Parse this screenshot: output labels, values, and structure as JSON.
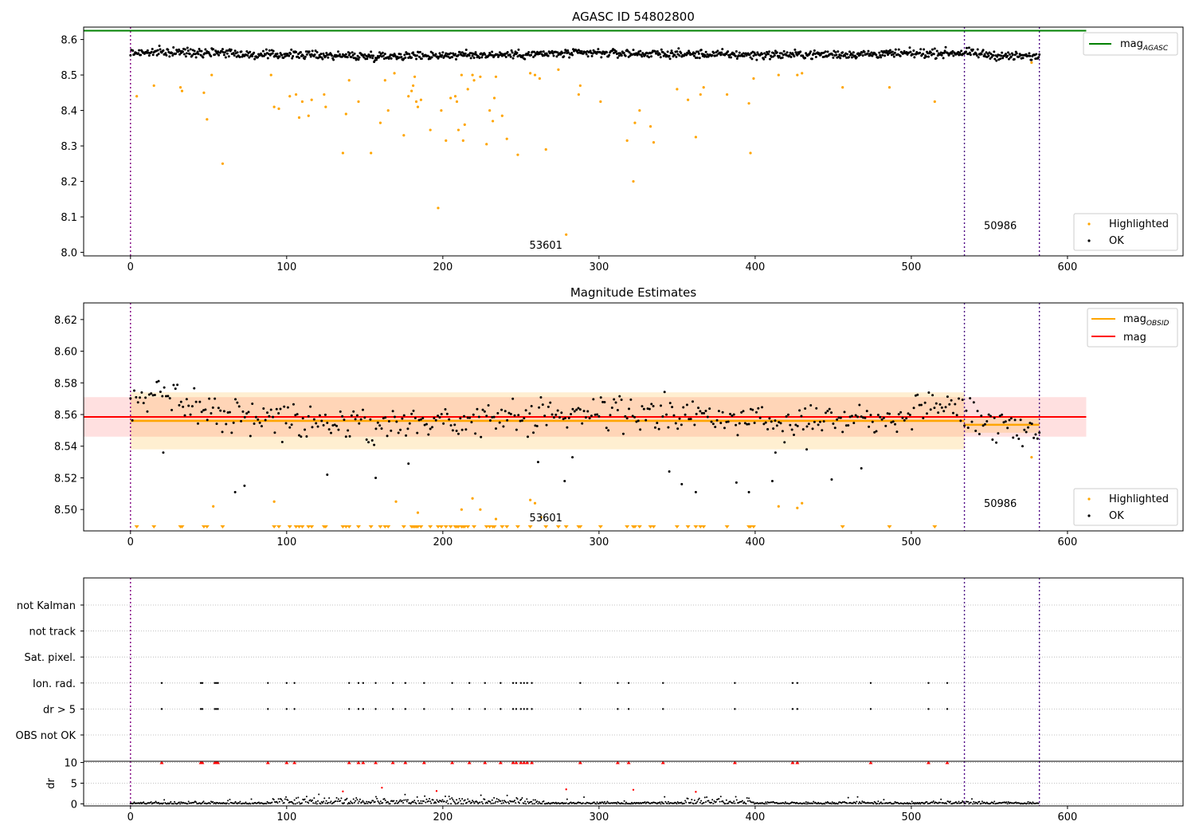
{
  "figure": {
    "xticks": [
      0,
      100,
      200,
      300,
      400,
      500,
      600
    ],
    "obsid_boundaries": [
      0,
      534,
      582
    ]
  },
  "chart_data": [
    {
      "type": "scatter",
      "title": "AGASC ID 54802800",
      "ylim": [
        7.99,
        8.635
      ],
      "xlim": [
        -30,
        674
      ],
      "yticks": [
        "8.0",
        "8.1",
        "8.2",
        "8.3",
        "8.4",
        "8.5",
        "8.6"
      ],
      "legend_top": {
        "position": "top-right",
        "entries": [
          {
            "label": "mag",
            "subscript": "AGASC",
            "color": "#008000"
          }
        ]
      },
      "legend_bottom": {
        "position": "bottom-right",
        "entries": [
          {
            "label": "Highlighted",
            "color": "#ffa500"
          },
          {
            "label": "OK",
            "color": "#000000"
          }
        ]
      },
      "agasc_mag": 8.625,
      "agasc_mag_xrange": [
        -30,
        612
      ],
      "annotations": [
        {
          "text": "53601",
          "x": 266,
          "y": 8.01
        },
        {
          "text": "50986",
          "x": 557,
          "y": 8.065
        }
      ],
      "series": [
        {
          "name": "OK",
          "color": "#000000",
          "x_step": 0.5,
          "points": [
            [
              0,
              8.563
            ],
            [
              60,
              8.565
            ],
            [
              80,
              8.555
            ],
            [
              100,
              8.558
            ],
            [
              150,
              8.553
            ],
            [
              200,
              8.556
            ],
            [
              250,
              8.558
            ],
            [
              300,
              8.562
            ],
            [
              350,
              8.559
            ],
            [
              400,
              8.557
            ],
            [
              450,
              8.558
            ],
            [
              500,
              8.56
            ],
            [
              534,
              8.563
            ],
            [
              560,
              8.553
            ],
            [
              582,
              8.552
            ]
          ]
        },
        {
          "name": "Highlighted",
          "color": "#ffa500",
          "points": [
            [
              4,
              8.44
            ],
            [
              15,
              8.47
            ],
            [
              32,
              8.465
            ],
            [
              33,
              8.455
            ],
            [
              47,
              8.45
            ],
            [
              49,
              8.375
            ],
            [
              52,
              8.5
            ],
            [
              59,
              8.25
            ],
            [
              90,
              8.5
            ],
            [
              92,
              8.41
            ],
            [
              95,
              8.405
            ],
            [
              102,
              8.44
            ],
            [
              106,
              8.445
            ],
            [
              108,
              8.38
            ],
            [
              110,
              8.425
            ],
            [
              114,
              8.385
            ],
            [
              116,
              8.43
            ],
            [
              124,
              8.445
            ],
            [
              125,
              8.41
            ],
            [
              136,
              8.28
            ],
            [
              138,
              8.39
            ],
            [
              140,
              8.485
            ],
            [
              146,
              8.425
            ],
            [
              154,
              8.28
            ],
            [
              160,
              8.365
            ],
            [
              163,
              8.485
            ],
            [
              165,
              8.4
            ],
            [
              169,
              8.505
            ],
            [
              175,
              8.33
            ],
            [
              178,
              8.44
            ],
            [
              180,
              8.455
            ],
            [
              181,
              8.47
            ],
            [
              182,
              8.495
            ],
            [
              183,
              8.425
            ],
            [
              184,
              8.41
            ],
            [
              186,
              8.43
            ],
            [
              192,
              8.345
            ],
            [
              197,
              8.125
            ],
            [
              199,
              8.4
            ],
            [
              202,
              8.315
            ],
            [
              205,
              8.435
            ],
            [
              208,
              8.44
            ],
            [
              209,
              8.425
            ],
            [
              210,
              8.345
            ],
            [
              212,
              8.5
            ],
            [
              213,
              8.315
            ],
            [
              214,
              8.36
            ],
            [
              216,
              8.46
            ],
            [
              219,
              8.5
            ],
            [
              220,
              8.485
            ],
            [
              224,
              8.495
            ],
            [
              228,
              8.305
            ],
            [
              230,
              8.4
            ],
            [
              232,
              8.37
            ],
            [
              233,
              8.435
            ],
            [
              234,
              8.495
            ],
            [
              238,
              8.385
            ],
            [
              241,
              8.32
            ],
            [
              248,
              8.275
            ],
            [
              256,
              8.505
            ],
            [
              259,
              8.5
            ],
            [
              262,
              8.49
            ],
            [
              266,
              8.29
            ],
            [
              274,
              8.515
            ],
            [
              279,
              8.05
            ],
            [
              287,
              8.445
            ],
            [
              288,
              8.47
            ],
            [
              301,
              8.425
            ],
            [
              318,
              8.315
            ],
            [
              322,
              8.2
            ],
            [
              323,
              8.365
            ],
            [
              326,
              8.4
            ],
            [
              333,
              8.355
            ],
            [
              335,
              8.31
            ],
            [
              350,
              8.46
            ],
            [
              357,
              8.43
            ],
            [
              362,
              8.325
            ],
            [
              365,
              8.445
            ],
            [
              367,
              8.465
            ],
            [
              382,
              8.445
            ],
            [
              396,
              8.42
            ],
            [
              397,
              8.28
            ],
            [
              399,
              8.49
            ],
            [
              415,
              8.5
            ],
            [
              427,
              8.5
            ],
            [
              430,
              8.505
            ],
            [
              456,
              8.465
            ],
            [
              486,
              8.465
            ],
            [
              515,
              8.425
            ],
            [
              577,
              8.535
            ]
          ]
        }
      ]
    },
    {
      "type": "scatter",
      "title": "Magnitude Estimates",
      "ylim": [
        8.4865,
        8.6305
      ],
      "xlim": [
        -30,
        674
      ],
      "yticks": [
        "8.50",
        "8.52",
        "8.54",
        "8.56",
        "8.58",
        "8.60",
        "8.62"
      ],
      "legend_top": {
        "position": "top-right",
        "entries": [
          {
            "label": "mag",
            "subscript": "OBSID",
            "color": "#ffa500"
          },
          {
            "label": "mag",
            "subscript": "",
            "color": "#ff0000"
          }
        ]
      },
      "legend_bottom": {
        "position": "bottom-right",
        "entries": [
          {
            "label": "Highlighted",
            "color": "#ffa500"
          },
          {
            "label": "OK",
            "color": "#000000"
          }
        ]
      },
      "mag": 8.5585,
      "mag_band": [
        8.546,
        8.571
      ],
      "mag_xrange": [
        -30,
        612
      ],
      "obsid_mag": [
        {
          "x0": 0,
          "x1": 534,
          "mag": 8.556,
          "band": [
            8.538,
            8.574
          ]
        },
        {
          "x0": 534,
          "x1": 582,
          "mag": 8.5535,
          "band": [
            8.5485,
            8.5585
          ]
        }
      ],
      "annotations": [
        {
          "text": "53601",
          "x": 266,
          "y": 8.4925
        },
        {
          "text": "50986",
          "x": 557,
          "y": 8.5015
        }
      ],
      "series": [
        {
          "name": "OK",
          "color": "#000000",
          "x_step": 1.2,
          "points": [
            [
              0,
              8.563
            ],
            [
              20,
              8.575
            ],
            [
              40,
              8.568
            ],
            [
              60,
              8.56
            ],
            [
              100,
              8.557
            ],
            [
              150,
              8.553
            ],
            [
              200,
              8.556
            ],
            [
              250,
              8.558
            ],
            [
              300,
              8.562
            ],
            [
              350,
              8.559
            ],
            [
              400,
              8.557
            ],
            [
              450,
              8.558
            ],
            [
              500,
              8.56
            ],
            [
              515,
              8.57
            ],
            [
              534,
              8.56
            ],
            [
              560,
              8.553
            ],
            [
              582,
              8.55
            ]
          ],
          "outliers": [
            [
              21,
              8.536
            ],
            [
              67,
              8.511
            ],
            [
              73,
              8.515
            ],
            [
              126,
              8.522
            ],
            [
              157,
              8.52
            ],
            [
              178,
              8.529
            ],
            [
              261,
              8.53
            ],
            [
              278,
              8.518
            ],
            [
              283,
              8.533
            ],
            [
              345,
              8.524
            ],
            [
              353,
              8.516
            ],
            [
              362,
              8.511
            ],
            [
              388,
              8.517
            ],
            [
              396,
              8.511
            ],
            [
              411,
              8.518
            ],
            [
              449,
              8.519
            ],
            [
              468,
              8.526
            ],
            [
              413,
              8.536
            ],
            [
              433,
              8.538
            ]
          ]
        },
        {
          "name": "Highlighted",
          "color": "#ffa500",
          "points": [
            [
              53,
              8.502
            ],
            [
              92,
              8.505
            ],
            [
              170,
              8.505
            ],
            [
              184,
              8.498
            ],
            [
              212,
              8.5
            ],
            [
              219,
              8.507
            ],
            [
              224,
              8.5
            ],
            [
              234,
              8.494
            ],
            [
              256,
              8.506
            ],
            [
              259,
              8.504
            ],
            [
              263,
              8.495
            ],
            [
              415,
              8.502
            ],
            [
              427,
              8.501
            ],
            [
              430,
              8.504
            ],
            [
              577,
              8.533
            ]
          ]
        }
      ],
      "highlight_markers": [
        4,
        15,
        32,
        33,
        47,
        49,
        59,
        92,
        95,
        102,
        106,
        108,
        110,
        114,
        116,
        124,
        125,
        136,
        138,
        140,
        146,
        154,
        160,
        163,
        165,
        175,
        180,
        181,
        182,
        183,
        184,
        186,
        192,
        197,
        199,
        202,
        205,
        208,
        209,
        210,
        212,
        213,
        214,
        216,
        220,
        228,
        230,
        232,
        233,
        238,
        241,
        248,
        256,
        266,
        274,
        279,
        287,
        288,
        301,
        318,
        322,
        323,
        326,
        333,
        335,
        350,
        357,
        362,
        365,
        367,
        382,
        396,
        397,
        399,
        456,
        486,
        515
      ]
    },
    {
      "type": "scatter",
      "title": "",
      "ylim": [
        0,
        1
      ],
      "xlim": [
        -30,
        674
      ],
      "categories": [
        "not Kalman",
        "not track",
        "Sat. pixel.",
        "Ion. rad.",
        "dr > 5",
        "OBS not OK"
      ],
      "flagged_x": [
        20,
        45,
        46,
        54,
        55,
        56,
        88,
        100,
        105,
        140,
        146,
        149,
        157,
        168,
        176,
        188,
        206,
        217,
        227,
        237,
        245,
        247,
        250,
        252,
        254,
        257,
        288,
        312,
        319,
        341,
        387,
        424,
        427,
        474,
        511,
        523
      ]
    },
    {
      "type": "scatter",
      "title": "",
      "ylabel": "dr",
      "ylim": [
        -0.5,
        10.3
      ],
      "yticks": [
        "0",
        "5",
        "10"
      ],
      "xlim": [
        -30,
        674
      ],
      "ok_color": "#000000",
      "highlighted_color": "#ff0000",
      "clipped_value": 10,
      "clipped_x": [
        20,
        45,
        46,
        54,
        55,
        56,
        88,
        100,
        105,
        140,
        146,
        149,
        157,
        168,
        176,
        188,
        206,
        217,
        227,
        237,
        245,
        247,
        250,
        252,
        254,
        257,
        288,
        312,
        319,
        341,
        387,
        424,
        427,
        474,
        511,
        523
      ],
      "highlighted_points": [
        [
          136,
          3.0
        ],
        [
          161,
          3.9
        ],
        [
          196,
          3.1
        ],
        [
          279,
          3.5
        ],
        [
          322,
          3.4
        ],
        [
          362,
          2.9
        ]
      ]
    }
  ]
}
